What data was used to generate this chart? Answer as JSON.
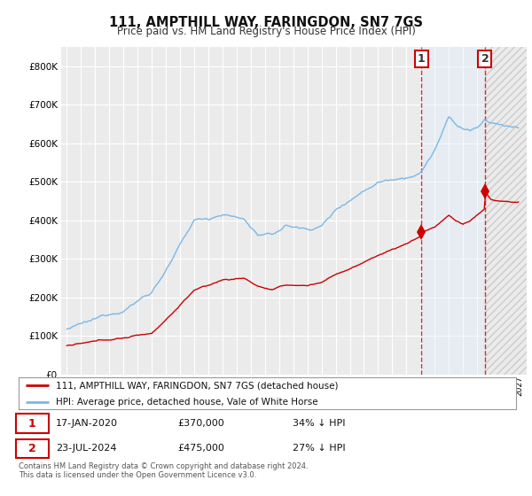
{
  "title": "111, AMPTHILL WAY, FARINGDON, SN7 7GS",
  "subtitle": "Price paid vs. HM Land Registry's House Price Index (HPI)",
  "legend_line1": "111, AMPTHILL WAY, FARINGDON, SN7 7GS (detached house)",
  "legend_line2": "HPI: Average price, detached house, Vale of White Horse",
  "annotation1_date": "17-JAN-2020",
  "annotation1_price": "£370,000",
  "annotation1_pct": "34% ↓ HPI",
  "annotation2_date": "23-JUL-2024",
  "annotation2_price": "£475,000",
  "annotation2_pct": "27% ↓ HPI",
  "footer": "Contains HM Land Registry data © Crown copyright and database right 2024.\nThis data is licensed under the Open Government Licence v3.0.",
  "hpi_color": "#7ab8e8",
  "price_color": "#cc0000",
  "annotation_color": "#cc0000",
  "background_color": "#ebebeb",
  "grid_color": "#ffffff",
  "shade_color": "#ddeeff",
  "hatch_color": "#dddddd",
  "ylim": [
    0,
    850000
  ],
  "yticks": [
    0,
    100000,
    200000,
    300000,
    400000,
    500000,
    600000,
    700000,
    800000
  ],
  "sale1_year": 2020.046,
  "sale1_val": 370000,
  "sale2_year": 2024.554,
  "sale2_val": 475000
}
